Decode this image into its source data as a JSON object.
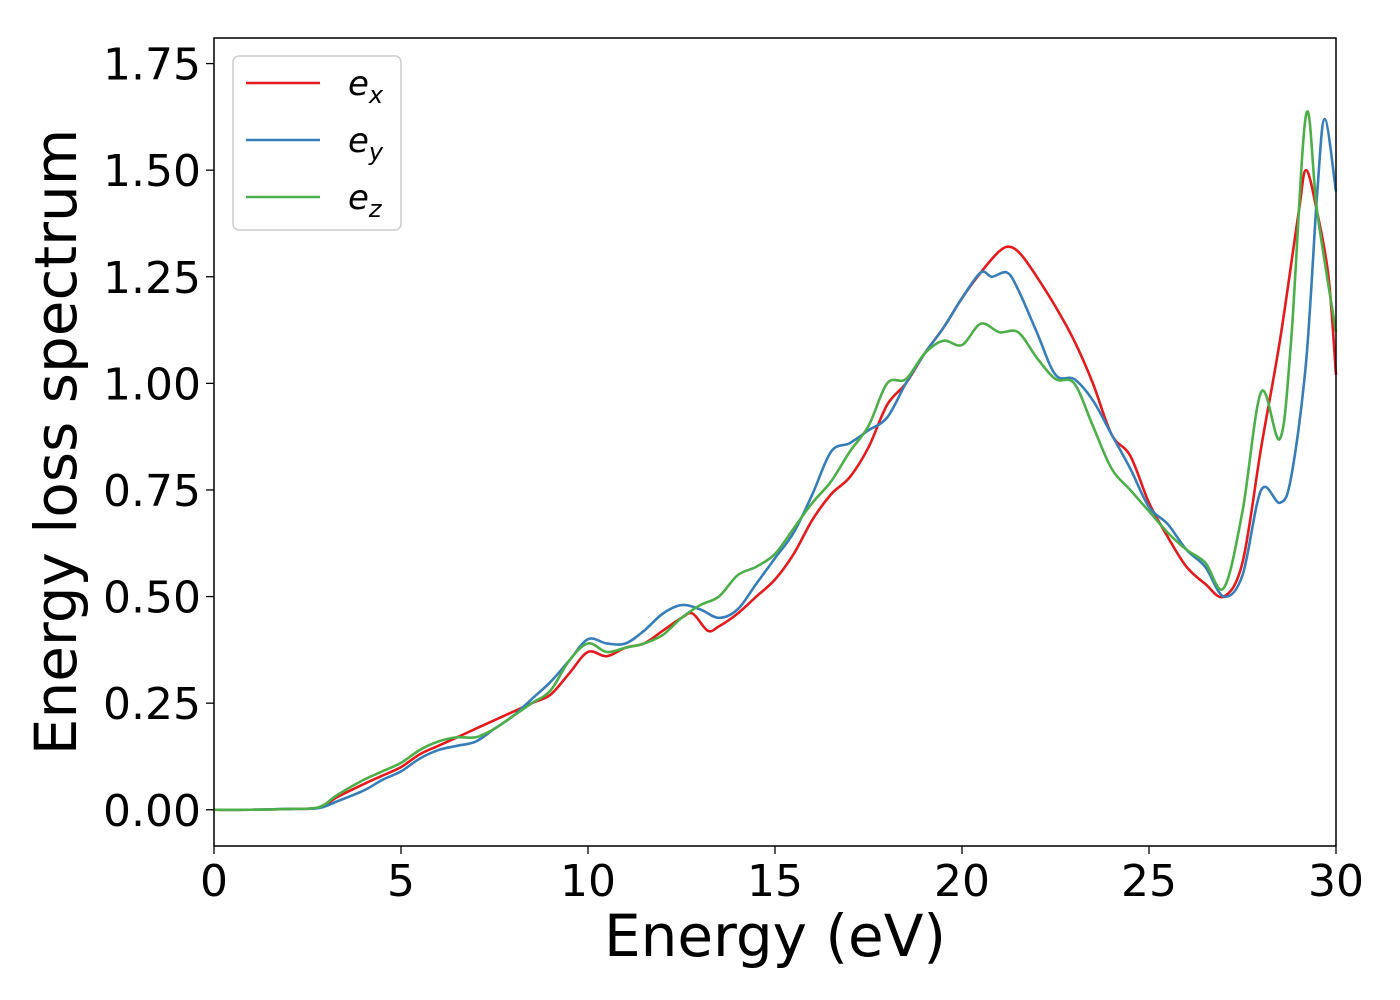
{
  "chart_data": {
    "type": "line",
    "title": "",
    "xlabel": "Energy (eV)",
    "ylabel": "Energy loss spectrum",
    "xlim": [
      0,
      30
    ],
    "ylim": [
      -0.085,
      1.81
    ],
    "xticks": [
      0,
      5,
      10,
      15,
      20,
      25,
      30
    ],
    "xtick_labels": [
      "0",
      "5",
      "10",
      "15",
      "20",
      "25",
      "30"
    ],
    "yticks": [
      0.0,
      0.25,
      0.5,
      0.75,
      1.0,
      1.25,
      1.5,
      1.75
    ],
    "ytick_labels": [
      "0.00",
      "0.25",
      "0.50",
      "0.75",
      "1.00",
      "1.25",
      "1.50",
      "1.75"
    ],
    "grid": false,
    "legend_position": "top-left",
    "series": [
      {
        "name": "e_x",
        "label_base": "e",
        "label_sub": "x",
        "color": "#e41a1c",
        "x": [
          0,
          1,
          2,
          2.8,
          3.3,
          4,
          4.5,
          5,
          5.5,
          6,
          6.5,
          7,
          7.5,
          8,
          8.5,
          9,
          9.5,
          10,
          10.5,
          11,
          11.5,
          12,
          12.5,
          12.8,
          13.2,
          13.5,
          14,
          14.5,
          15,
          15.5,
          16,
          16.5,
          17,
          17.5,
          18,
          18.5,
          19,
          19.5,
          20,
          20.5,
          21,
          21.3,
          21.6,
          22,
          22.5,
          23,
          23.5,
          24,
          24.5,
          25,
          25.5,
          26,
          26.5,
          27,
          27.5,
          28,
          28.5,
          29,
          29.2,
          29.5,
          29.8,
          30
        ],
        "values": [
          0,
          0,
          0.002,
          0.005,
          0.03,
          0.06,
          0.08,
          0.1,
          0.13,
          0.15,
          0.17,
          0.19,
          0.21,
          0.23,
          0.25,
          0.27,
          0.32,
          0.37,
          0.36,
          0.38,
          0.39,
          0.42,
          0.45,
          0.46,
          0.42,
          0.43,
          0.46,
          0.5,
          0.54,
          0.6,
          0.68,
          0.74,
          0.78,
          0.85,
          0.95,
          1.0,
          1.07,
          1.13,
          1.2,
          1.26,
          1.31,
          1.32,
          1.3,
          1.25,
          1.18,
          1.1,
          1.0,
          0.88,
          0.83,
          0.72,
          0.64,
          0.57,
          0.53,
          0.5,
          0.58,
          0.85,
          1.1,
          1.4,
          1.5,
          1.4,
          1.25,
          1.02
        ]
      },
      {
        "name": "e_y",
        "label_base": "e",
        "label_sub": "y",
        "color": "#377eb8",
        "x": [
          0,
          1,
          2,
          2.8,
          3.3,
          4,
          4.5,
          5,
          5.5,
          6,
          6.5,
          7,
          7.5,
          8,
          8.5,
          9,
          9.5,
          10,
          10.5,
          11,
          11.5,
          12,
          12.5,
          13,
          13.5,
          14,
          14.5,
          15,
          15.5,
          16,
          16.5,
          17,
          17.5,
          18,
          18.5,
          19,
          19.5,
          20,
          20.5,
          20.8,
          21.2,
          21.5,
          22,
          22.5,
          23,
          23.5,
          24,
          24.5,
          25,
          25.5,
          26,
          26.5,
          27,
          27.5,
          28,
          28.5,
          28.8,
          29.2,
          29.5,
          29.7,
          30
        ],
        "values": [
          0,
          0,
          0.002,
          0.004,
          0.02,
          0.045,
          0.07,
          0.09,
          0.12,
          0.14,
          0.15,
          0.16,
          0.19,
          0.22,
          0.26,
          0.3,
          0.35,
          0.4,
          0.39,
          0.39,
          0.42,
          0.46,
          0.48,
          0.47,
          0.45,
          0.47,
          0.53,
          0.59,
          0.65,
          0.74,
          0.84,
          0.86,
          0.89,
          0.92,
          1.0,
          1.07,
          1.13,
          1.2,
          1.26,
          1.25,
          1.26,
          1.22,
          1.12,
          1.02,
          1.01,
          0.96,
          0.88,
          0.8,
          0.71,
          0.67,
          0.61,
          0.57,
          0.5,
          0.55,
          0.75,
          0.72,
          0.78,
          1.05,
          1.45,
          1.62,
          1.45
        ]
      },
      {
        "name": "e_z",
        "label_base": "e",
        "label_sub": "z",
        "color": "#4daf4a",
        "x": [
          0,
          1,
          2,
          2.8,
          3.3,
          4,
          4.5,
          5,
          5.5,
          6,
          6.5,
          7,
          7.5,
          8,
          8.5,
          9,
          9.5,
          10,
          10.5,
          11,
          11.5,
          12,
          12.5,
          13,
          13.5,
          14,
          14.5,
          15,
          15.5,
          16,
          16.5,
          17,
          17.5,
          18,
          18.5,
          19,
          19.5,
          20,
          20.5,
          21,
          21.5,
          22,
          22.5,
          23,
          23.5,
          24,
          24.5,
          25,
          25.5,
          26,
          26.5,
          27,
          27.5,
          28,
          28.5,
          28.8,
          29.2,
          29.5,
          30
        ],
        "values": [
          0,
          0,
          0.002,
          0.006,
          0.035,
          0.07,
          0.09,
          0.11,
          0.14,
          0.16,
          0.17,
          0.17,
          0.19,
          0.22,
          0.25,
          0.28,
          0.35,
          0.39,
          0.37,
          0.38,
          0.39,
          0.41,
          0.45,
          0.48,
          0.5,
          0.55,
          0.57,
          0.6,
          0.66,
          0.72,
          0.77,
          0.84,
          0.9,
          1.0,
          1.01,
          1.07,
          1.1,
          1.09,
          1.14,
          1.12,
          1.12,
          1.06,
          1.01,
          1.0,
          0.9,
          0.8,
          0.75,
          0.7,
          0.65,
          0.61,
          0.58,
          0.52,
          0.7,
          0.98,
          0.87,
          1.1,
          1.63,
          1.4,
          1.12
        ]
      }
    ]
  }
}
